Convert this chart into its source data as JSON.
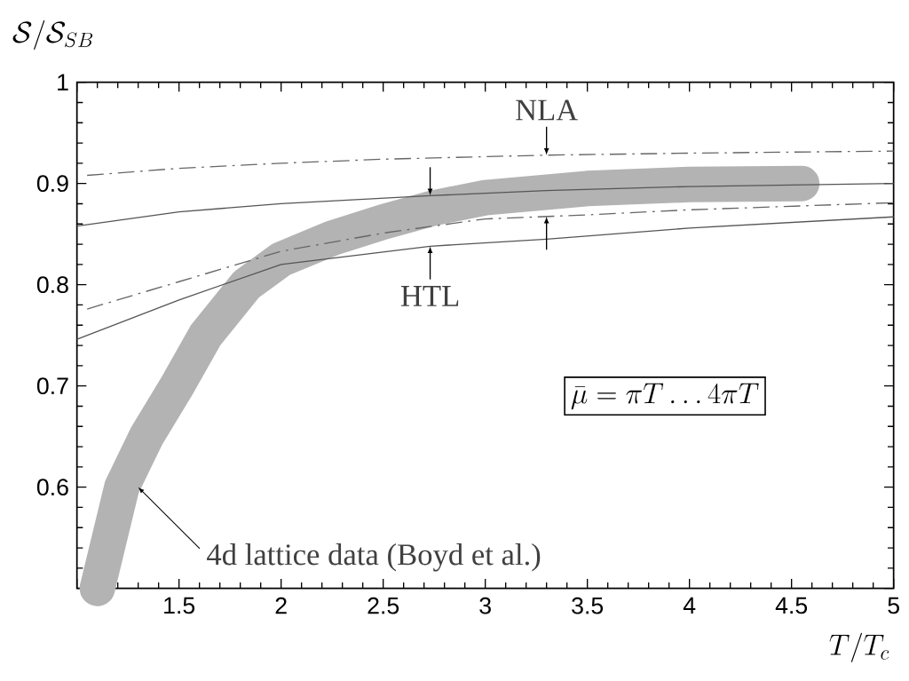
{
  "chart_data": {
    "type": "line",
    "xlabel": "T/T_c",
    "ylabel": "\\mathcal{S}/\\mathcal{S}_{SB}",
    "xlim": [
      1,
      5
    ],
    "ylim": [
      0.5,
      1
    ],
    "xticks": [
      {
        "value": 1,
        "label": null
      },
      1.5,
      2,
      2.5,
      3,
      3.5,
      4,
      4.5,
      5
    ],
    "yticks": [
      {
        "value": 0.5,
        "label": null
      },
      0.6,
      0.7,
      0.8,
      0.9,
      1
    ],
    "grid": false,
    "marker": "none",
    "series": [
      {
        "color": "#b3b3b3",
        "x": [
          1.1,
          1.16,
          1.22,
          1.34,
          1.49,
          1.63,
          1.83,
          2,
          2.25,
          2.5,
          2.75,
          3,
          3.5,
          4,
          4.55
        ],
        "values": [
          0.5,
          0.55,
          0.6,
          0.65,
          0.7,
          0.75,
          0.8,
          0.825,
          0.846,
          0.862,
          0.876,
          0.886,
          0.895,
          0.899,
          0.9
        ],
        "line_style": "solid"
      },
      {
        "color": "#555555",
        "x": [
          1,
          1.5,
          2,
          2.73,
          3.3,
          4,
          5
        ],
        "values": [
          0.858,
          0.872,
          0.88,
          0.888,
          0.893,
          0.897,
          0.9
        ],
        "line_style": "solid"
      },
      {
        "color": "#555555",
        "x": [
          1,
          1.5,
          2,
          2.73,
          3.3,
          4,
          5
        ],
        "values": [
          0.746,
          0.785,
          0.82,
          0.838,
          0.845,
          0.856,
          0.867
        ],
        "line_style": "solid"
      },
      {
        "color": "#666666",
        "x": [
          1.05,
          1.5,
          2,
          2.5,
          3.3,
          4,
          5
        ],
        "values": [
          0.908,
          0.915,
          0.92,
          0.924,
          0.928,
          0.93,
          0.932
        ],
        "line_style": "dashdot"
      },
      {
        "color": "#666666",
        "x": [
          1.05,
          1.5,
          2,
          2.5,
          3,
          3.5,
          4,
          5
        ],
        "values": [
          0.776,
          0.803,
          0.833,
          0.851,
          0.865,
          0.869,
          0.874,
          0.881
        ],
        "line_style": "dashdot"
      }
    ],
    "annotations": [
      {
        "text": "NLA",
        "x": 3.3,
        "y": 0.928
      },
      {
        "text": "HTL",
        "x": 2.73,
        "y": 0.838
      },
      {
        "text": "4d lattice data (Boyd et al.)",
        "x": 1.3,
        "y": 0.6
      },
      "\\bar{\\mu} = \\pi T \\ldots 4\\pi T"
    ]
  }
}
